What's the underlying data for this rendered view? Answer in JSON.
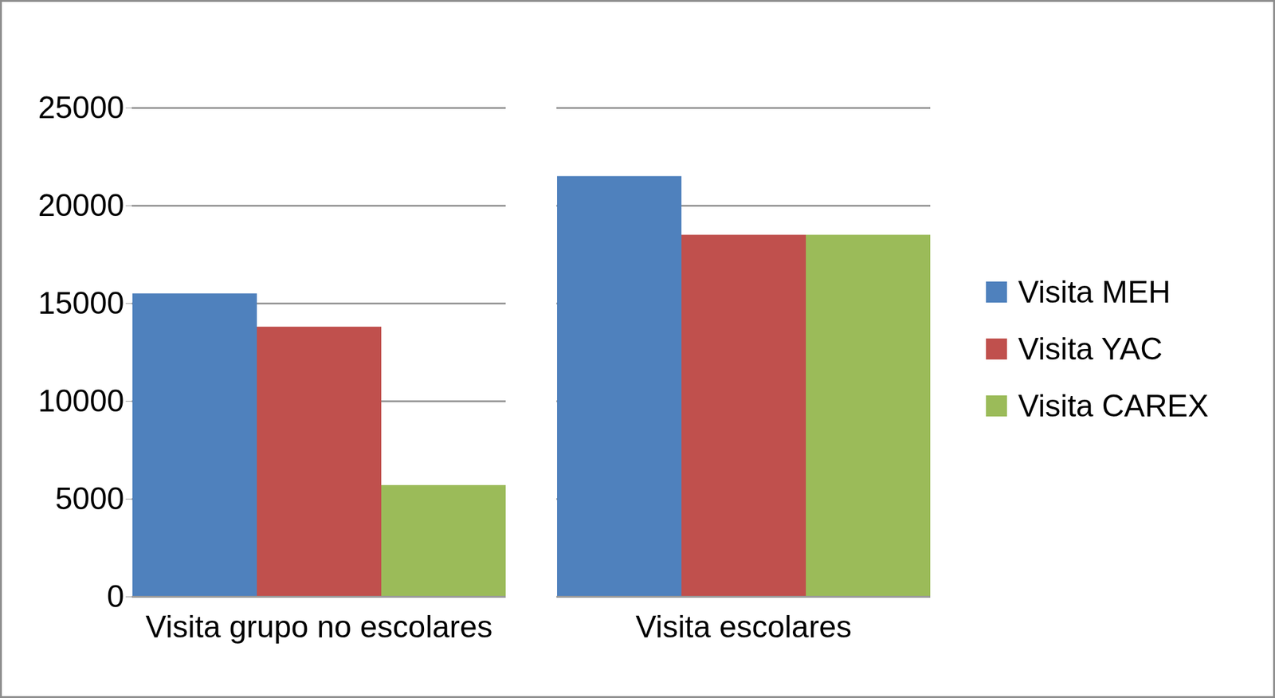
{
  "chart_data": {
    "type": "bar",
    "categories": [
      "Visita grupo no escolares",
      "Visita escolares"
    ],
    "series": [
      {
        "name": "Visita MEH",
        "color": "#4f81bd",
        "values": [
          15500,
          21500
        ]
      },
      {
        "name": "Visita YAC",
        "color": "#c0504d",
        "values": [
          13800,
          18500
        ]
      },
      {
        "name": "Visita CAREX",
        "color": "#9bbb59",
        "values": [
          5700,
          18500
        ]
      }
    ],
    "ylim": [
      0,
      25000
    ],
    "yticks": [
      0,
      5000,
      10000,
      15000,
      20000,
      25000
    ],
    "grid": true,
    "legend": "right"
  }
}
